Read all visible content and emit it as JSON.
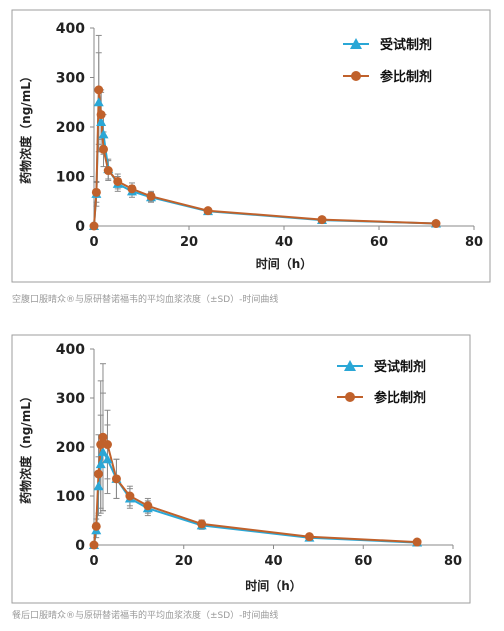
{
  "chart_data": [
    {
      "type": "line",
      "title": "",
      "xlabel": "时间（h）",
      "ylabel": "药物浓度（ng/mL）",
      "xlim": [
        0,
        80
      ],
      "ylim": [
        0,
        400
      ],
      "x_ticks": [
        "0",
        "20",
        "40",
        "60",
        "80"
      ],
      "y_ticks": [
        "0",
        "100",
        "200",
        "300",
        "400"
      ],
      "legend_position": "top-right",
      "grid": false,
      "series": [
        {
          "name": "受试制剂",
          "color": "#2aa7d6",
          "marker": "triangle",
          "x": [
            0,
            0.5,
            1,
            1.5,
            2,
            3,
            5,
            8,
            12,
            24,
            48,
            72
          ],
          "y": [
            0,
            65,
            250,
            210,
            185,
            115,
            85,
            70,
            58,
            30,
            12,
            5
          ],
          "err": [
            0,
            25,
            100,
            60,
            40,
            20,
            15,
            12,
            10,
            5,
            3,
            2
          ]
        },
        {
          "name": "参比制剂",
          "color": "#c0612b",
          "marker": "circle",
          "x": [
            0,
            0.5,
            1,
            1.5,
            2,
            3,
            5,
            8,
            12,
            24,
            48,
            72
          ],
          "y": [
            0,
            68,
            275,
            225,
            155,
            112,
            90,
            75,
            60,
            31,
            13,
            5
          ],
          "err": [
            0,
            20,
            110,
            50,
            35,
            20,
            15,
            12,
            10,
            5,
            3,
            2
          ]
        }
      ]
    },
    {
      "type": "line",
      "title": "",
      "xlabel": "时间（h）",
      "ylabel": "药物浓度（ng/mL）",
      "xlim": [
        0,
        80
      ],
      "ylim": [
        0,
        400
      ],
      "x_ticks": [
        "0",
        "20",
        "40",
        "60",
        "80"
      ],
      "y_ticks": [
        "0",
        "100",
        "200",
        "300",
        "400"
      ],
      "legend_position": "top-right",
      "grid": false,
      "series": [
        {
          "name": "受试制剂",
          "color": "#2aa7d6",
          "marker": "triangle",
          "x": [
            0,
            0.5,
            1,
            1.5,
            2,
            3,
            5,
            8,
            12,
            24,
            48,
            72
          ],
          "y": [
            0,
            30,
            120,
            165,
            190,
            175,
            135,
            95,
            75,
            40,
            15,
            5
          ],
          "err": [
            0,
            15,
            60,
            100,
            120,
            70,
            40,
            20,
            15,
            8,
            4,
            2
          ]
        },
        {
          "name": "参比制剂",
          "color": "#c0612b",
          "marker": "circle",
          "x": [
            0,
            0.5,
            1,
            1.5,
            2,
            3,
            5,
            8,
            12,
            24,
            48,
            72
          ],
          "y": [
            0,
            38,
            145,
            205,
            220,
            205,
            135,
            100,
            80,
            43,
            17,
            6
          ],
          "err": [
            0,
            15,
            80,
            130,
            150,
            70,
            40,
            20,
            15,
            8,
            4,
            2
          ]
        }
      ]
    }
  ],
  "captions": [
    "空腹口服晴众®与原研替诺福韦的平均血浆浓度（±SD）-时间曲线",
    "餐后口服晴众®与原研替诺福韦的平均血浆浓度（±SD）-时间曲线"
  ]
}
